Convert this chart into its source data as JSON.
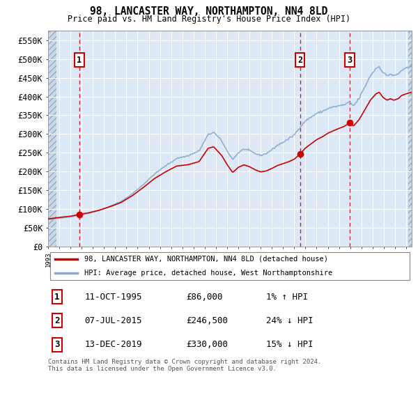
{
  "title": "98, LANCASTER WAY, NORTHAMPTON, NN4 8LD",
  "subtitle": "Price paid vs. HM Land Registry's House Price Index (HPI)",
  "ylim": [
    0,
    575000
  ],
  "yticks": [
    0,
    50000,
    100000,
    150000,
    200000,
    250000,
    300000,
    350000,
    400000,
    450000,
    500000,
    550000
  ],
  "ytick_labels": [
    "£0",
    "£50K",
    "£100K",
    "£150K",
    "£200K",
    "£250K",
    "£300K",
    "£350K",
    "£400K",
    "£450K",
    "£500K",
    "£550K"
  ],
  "xlim_start": 1993.0,
  "xlim_end": 2025.5,
  "sale_points": [
    {
      "date": 1995.78,
      "price": 86000,
      "label": "1"
    },
    {
      "date": 2015.51,
      "price": 246500,
      "label": "2"
    },
    {
      "date": 2019.95,
      "price": 330000,
      "label": "3"
    }
  ],
  "sale_color": "#cc0000",
  "hpi_color": "#88aacc",
  "legend_sale_label": "98, LANCASTER WAY, NORTHAMPTON, NN4 8LD (detached house)",
  "legend_hpi_label": "HPI: Average price, detached house, West Northamptonshire",
  "table_rows": [
    {
      "num": "1",
      "date": "11-OCT-1995",
      "price": "£86,000",
      "hpi": "1% ↑ HPI"
    },
    {
      "num": "2",
      "date": "07-JUL-2015",
      "price": "£246,500",
      "hpi": "24% ↓ HPI"
    },
    {
      "num": "3",
      "date": "13-DEC-2019",
      "price": "£330,000",
      "hpi": "15% ↓ HPI"
    }
  ],
  "footer": "Contains HM Land Registry data © Crown copyright and database right 2024.\nThis data is licensed under the Open Government Licence v3.0.",
  "plot_bg": "#dce8f5",
  "hatch_bg": "#c8d8e8"
}
